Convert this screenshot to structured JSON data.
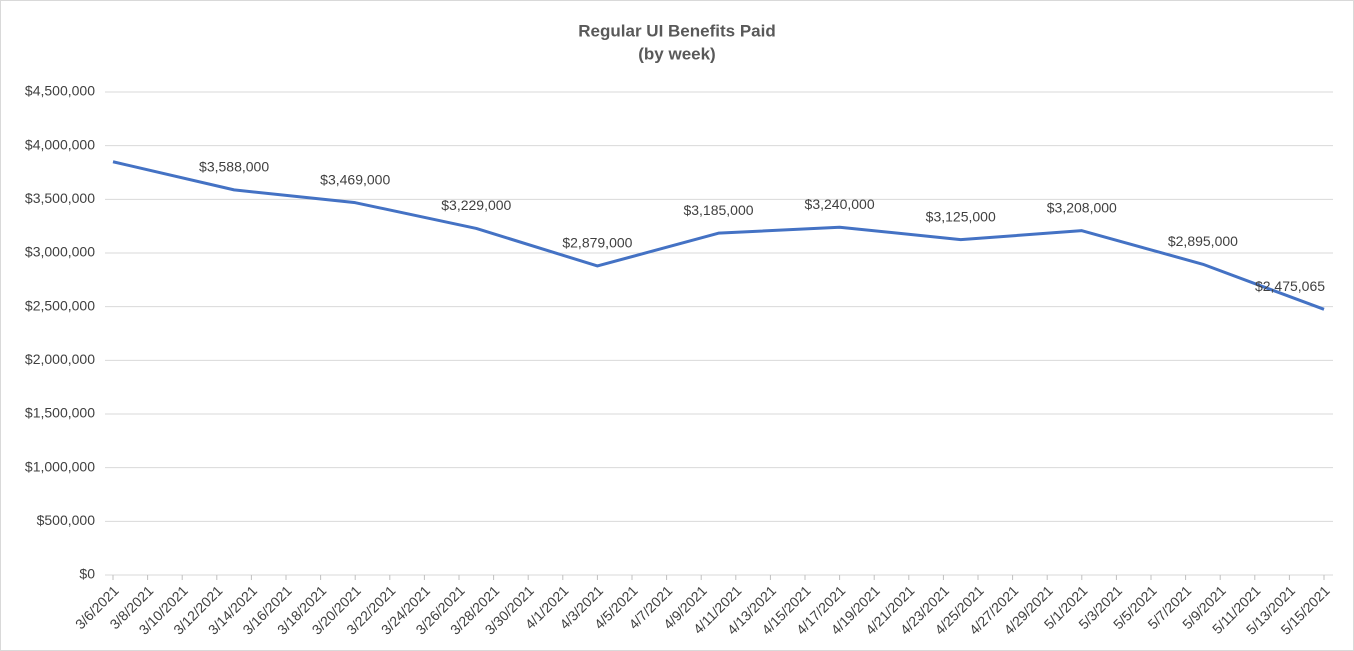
{
  "chart_data": {
    "type": "line",
    "title": "Regular UI Benefits Paid",
    "subtitle": "(by week)",
    "x": [
      "3/6/2021",
      "3/13/2021",
      "3/20/2021",
      "3/27/2021",
      "4/3/2021",
      "4/10/2021",
      "4/17/2021",
      "4/24/2021",
      "5/1/2021",
      "5/8/2021",
      "5/15/2021"
    ],
    "values": [
      3850000,
      3588000,
      3469000,
      3229000,
      2879000,
      3185000,
      3240000,
      3125000,
      3208000,
      2895000,
      2475065
    ],
    "value_labels": [
      null,
      "$3,588,000",
      "$3,469,000",
      "$3,229,000",
      "$2,879,000",
      "$3,185,000",
      "$3,240,000",
      "$3,125,000",
      "$3,208,000",
      "$2,895,000",
      "$2,475,065"
    ],
    "color": "#4472c4",
    "xlim": [
      "3/6/2021",
      "5/15/2021"
    ],
    "xticks": [
      "3/6/2021",
      "3/8/2021",
      "3/10/2021",
      "3/12/2021",
      "3/14/2021",
      "3/16/2021",
      "3/18/2021",
      "3/20/2021",
      "3/22/2021",
      "3/24/2021",
      "3/26/2021",
      "3/28/2021",
      "3/30/2021",
      "4/1/2021",
      "4/3/2021",
      "4/5/2021",
      "4/7/2021",
      "4/9/2021",
      "4/11/2021",
      "4/13/2021",
      "4/15/2021",
      "4/17/2021",
      "4/19/2021",
      "4/21/2021",
      "4/23/2021",
      "4/25/2021",
      "4/27/2021",
      "4/29/2021",
      "5/1/2021",
      "5/3/2021",
      "5/5/2021",
      "5/7/2021",
      "5/9/2021",
      "5/11/2021",
      "5/13/2021",
      "5/15/2021"
    ],
    "ylim": [
      0,
      4500000
    ],
    "yticks": [
      {
        "value": 0,
        "label": "$0"
      },
      {
        "value": 500000,
        "label": "$500,000"
      },
      {
        "value": 1000000,
        "label": "$1,000,000"
      },
      {
        "value": 1500000,
        "label": "$1,500,000"
      },
      {
        "value": 2000000,
        "label": "$2,000,000"
      },
      {
        "value": 2500000,
        "label": "$2,500,000"
      },
      {
        "value": 3000000,
        "label": "$3,000,000"
      },
      {
        "value": 3500000,
        "label": "$3,500,000"
      },
      {
        "value": 4000000,
        "label": "$4,000,000"
      },
      {
        "value": 4500000,
        "label": "$4,500,000"
      }
    ],
    "grid": true
  }
}
